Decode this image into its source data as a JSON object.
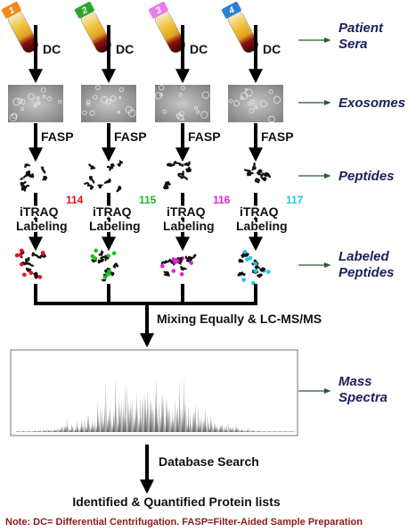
{
  "columns": [
    {
      "tube": "1",
      "tag": "114",
      "tag_color": "#e8101a",
      "cap_color": "#f08a1c"
    },
    {
      "tube": "2",
      "tag": "115",
      "tag_color": "#19c21c",
      "cap_color": "#2aa52e"
    },
    {
      "tube": "3",
      "tag": "116",
      "tag_color": "#e21fd6",
      "cap_color": "#e87ce8"
    },
    {
      "tube": "4",
      "tag": "117",
      "tag_color": "#19c8e6",
      "cap_color": "#2a7fd6"
    }
  ],
  "steps": {
    "dc": "DC",
    "fasp": "FASP",
    "labeling": [
      "iTRAQ",
      "Labeling"
    ],
    "mixing": "Mixing Equally & LC-MS/MS",
    "search": "Database Search"
  },
  "stages": [
    [
      "Patient",
      "Sera"
    ],
    [
      "Exosomes"
    ],
    [
      "Peptides"
    ],
    [
      "Labeled",
      "Peptides"
    ],
    [
      "Mass",
      "Spectra"
    ]
  ],
  "result": "Identified & Quantified Protein lists",
  "note": "Note: DC= Differential Centrifugation.  FASP=Filter-Aided Sample Preparation"
}
